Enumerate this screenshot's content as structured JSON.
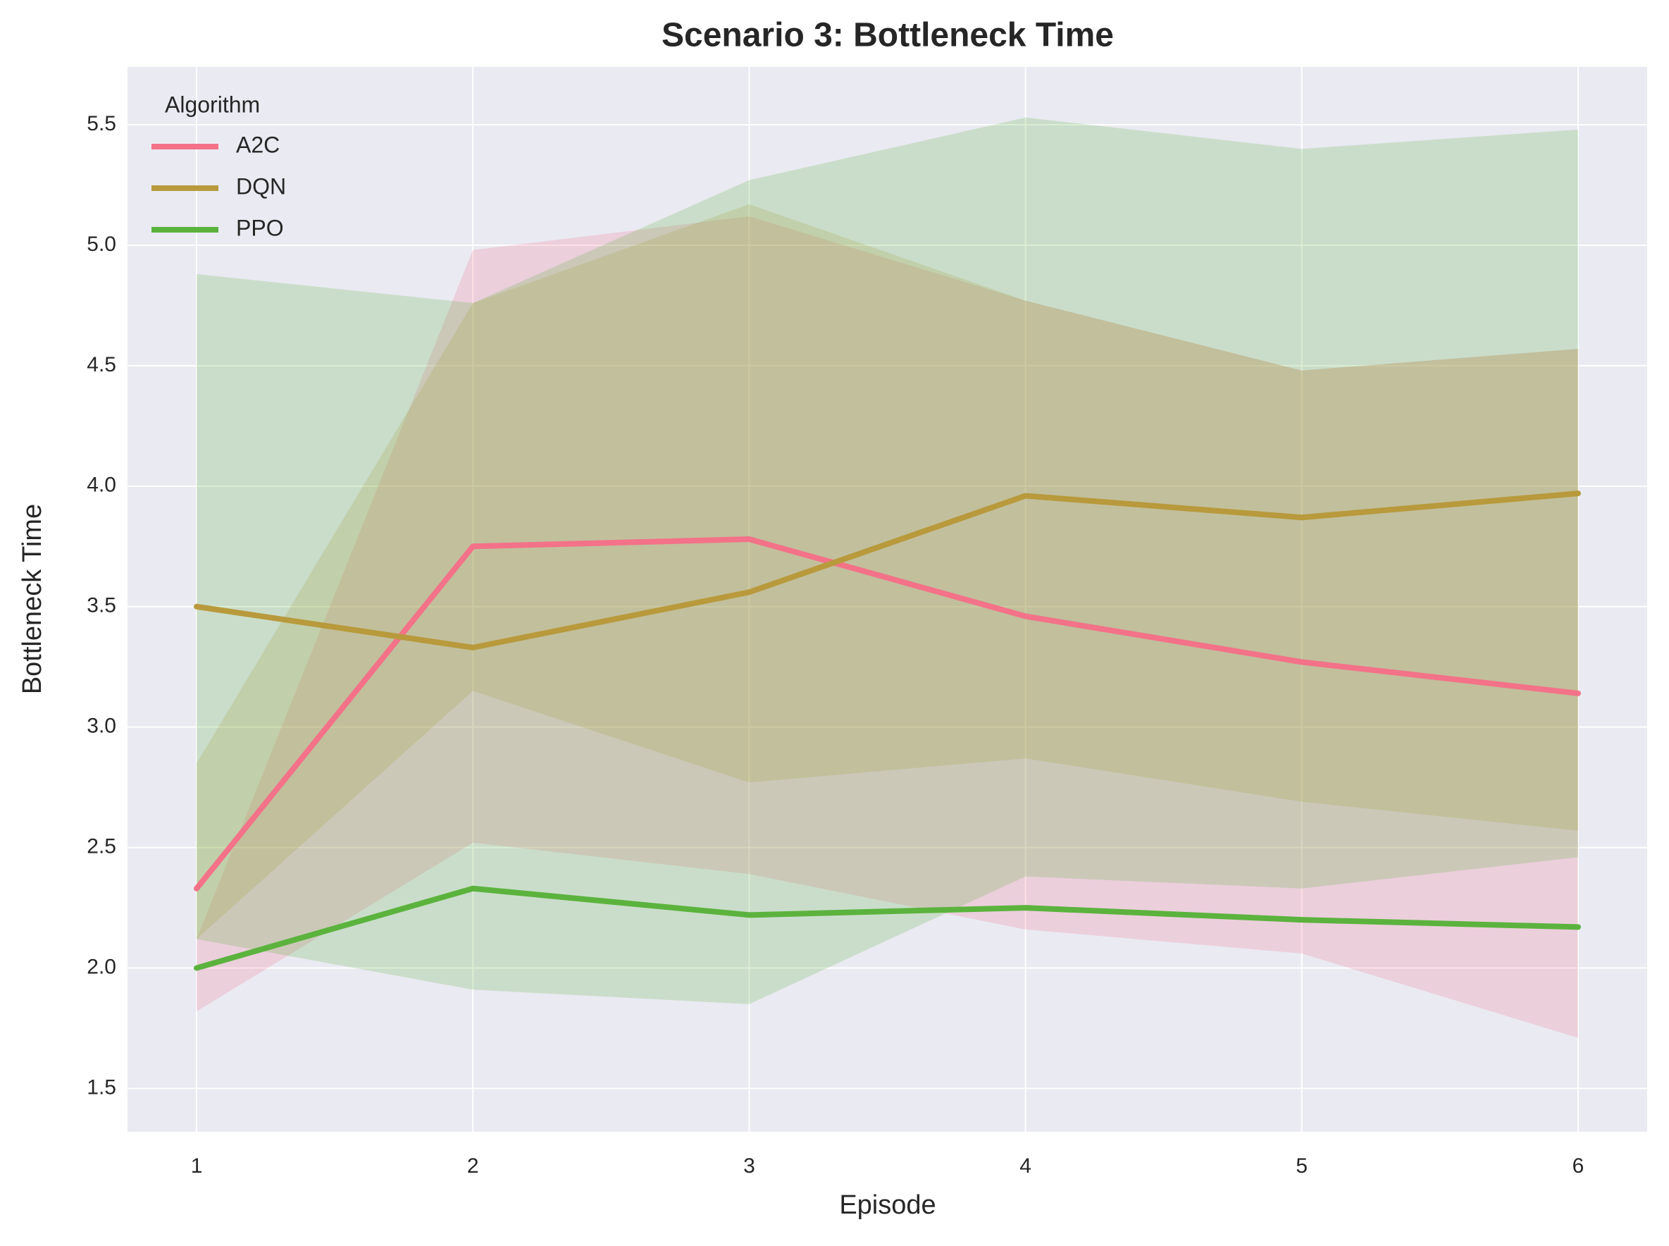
{
  "chart_data": {
    "type": "line",
    "title": "Scenario 3: Bottleneck Time",
    "xlabel": "Episode",
    "ylabel": "Bottleneck Time",
    "legend_title": "Algorithm",
    "legend": "upper left",
    "x": [
      1,
      2,
      3,
      4,
      5,
      6
    ],
    "xlim": [
      0.75,
      6.25
    ],
    "xticks": [
      1,
      2,
      3,
      4,
      5,
      6
    ],
    "ylim": [
      1.32,
      5.74
    ],
    "yticks": [
      {
        "value": 1.5,
        "label": "1.5"
      },
      {
        "value": 2,
        "label": "2.0"
      },
      {
        "value": 2.5,
        "label": "2.5"
      },
      {
        "value": 3,
        "label": "3.0"
      },
      {
        "value": 3.5,
        "label": "3.5"
      },
      {
        "value": 4,
        "label": "4.0"
      },
      {
        "value": 4.5,
        "label": "4.5"
      },
      {
        "value": 5,
        "label": "5.0"
      },
      {
        "value": 5.5,
        "label": "5.5"
      }
    ],
    "grid": true,
    "series": [
      {
        "name": "A2C",
        "color": "#f37288",
        "values": [
          2.33,
          3.75,
          3.78,
          3.46,
          3.27,
          3.14
        ],
        "lower": [
          1.82,
          2.52,
          2.39,
          2.16,
          2.06,
          1.71
        ],
        "upper": [
          2.12,
          4.98,
          5.12,
          4.77,
          4.48,
          4.57
        ]
      },
      {
        "name": "DQN",
        "color": "#b89a3c",
        "values": [
          3.5,
          3.33,
          3.56,
          3.96,
          3.87,
          3.97
        ],
        "lower": [
          2.12,
          3.15,
          2.77,
          2.87,
          2.69,
          2.57
        ],
        "upper": [
          2.85,
          4.76,
          5.17,
          4.77,
          4.48,
          4.57
        ]
      },
      {
        "name": "PPO",
        "color": "#5bb33d",
        "values": [
          2.0,
          2.33,
          2.22,
          2.25,
          2.2,
          2.17
        ],
        "lower": [
          2.12,
          1.91,
          1.85,
          2.38,
          2.33,
          2.46
        ],
        "upper": [
          4.88,
          4.76,
          5.27,
          5.53,
          5.4,
          5.48
        ]
      }
    ]
  }
}
